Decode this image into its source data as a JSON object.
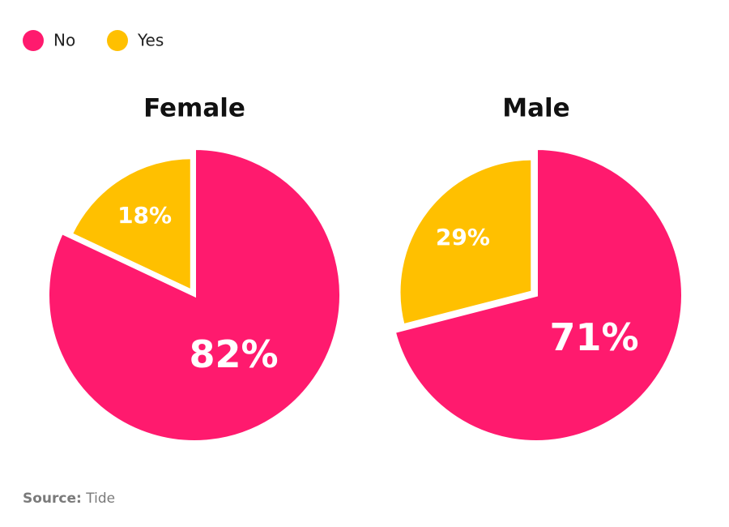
{
  "chart_data": [
    {
      "type": "pie",
      "title": "Female",
      "categories": [
        "No",
        "Yes"
      ],
      "values": [
        82,
        18
      ],
      "value_labels": [
        "82%",
        "18%"
      ],
      "colors": [
        "#ff1a6e",
        "#ffc000"
      ]
    },
    {
      "type": "pie",
      "title": "Male",
      "categories": [
        "No",
        "Yes"
      ],
      "values": [
        71,
        29
      ],
      "value_labels": [
        "71%",
        "29%"
      ],
      "colors": [
        "#ff1a6e",
        "#ffc000"
      ]
    }
  ],
  "source": {
    "label": "Source:",
    "text": "Tide"
  }
}
